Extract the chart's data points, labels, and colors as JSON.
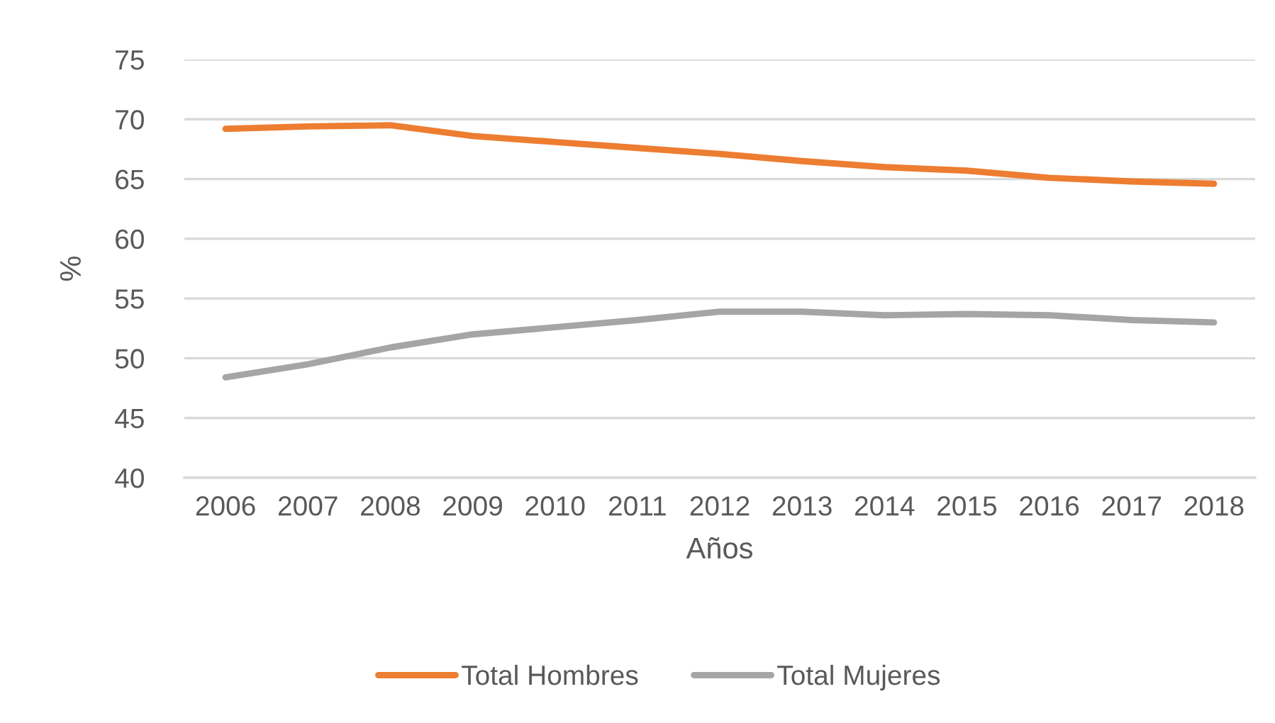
{
  "chart_data": {
    "type": "line",
    "xlabel": "Años",
    "ylabel": "%",
    "categories": [
      "2006",
      "2007",
      "2008",
      "2009",
      "2010",
      "2011",
      "2012",
      "2013",
      "2014",
      "2015",
      "2016",
      "2017",
      "2018"
    ],
    "series": [
      {
        "name": "Total Hombres",
        "color": "#ed7d31",
        "values": [
          69.2,
          69.4,
          69.5,
          68.6,
          68.1,
          67.6,
          67.1,
          66.5,
          66.0,
          65.7,
          65.1,
          64.8,
          64.6
        ]
      },
      {
        "name": "Total Mujeres",
        "color": "#a5a5a5",
        "values": [
          48.4,
          49.5,
          50.9,
          52.0,
          52.6,
          53.2,
          53.9,
          53.9,
          53.6,
          53.7,
          53.6,
          53.2,
          53.0
        ]
      }
    ],
    "ylim": [
      40,
      75
    ],
    "yticks": [
      40,
      45,
      50,
      55,
      60,
      65,
      70,
      75
    ],
    "grid": "y",
    "legend": "bottom"
  }
}
